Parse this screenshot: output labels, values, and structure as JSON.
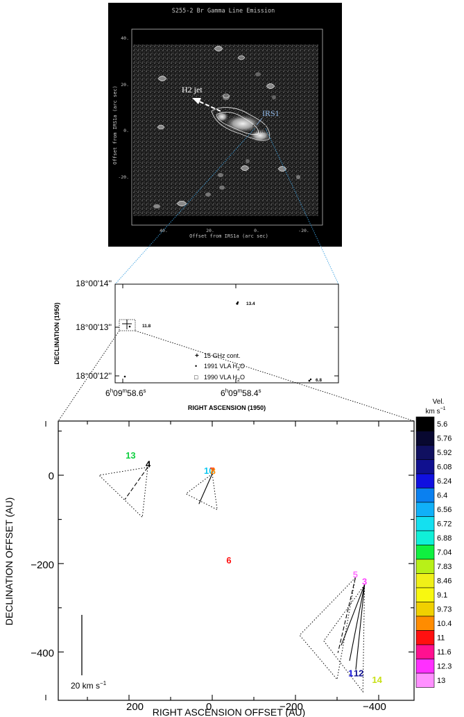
{
  "image_panel": {
    "title": "S255-2 Br Gamma Line Emission",
    "ylabel": "Offset from IRS1a (arc sec)",
    "xlabel": "Offset from IRS1a (arc sec)",
    "xticks": [
      "40.",
      "20.",
      "0.",
      "-20."
    ],
    "yticks": [
      "40.",
      "20.",
      "0.",
      "-20."
    ],
    "annotations": {
      "jet": "H2 jet",
      "source": "IRS1"
    }
  },
  "middle_panel": {
    "yticks": [
      "18°00'14''",
      "18°00'13''",
      "18°00'12''"
    ],
    "ylabel": "DECLINATION (1950)",
    "xlabel": "RIGHT ASCENSION (1950)",
    "xtick1": {
      "h": "6",
      "hs": "h",
      "m": "09",
      "ms": "m",
      "s": "58.6",
      "ss": "s"
    },
    "xtick2": {
      "h": "6",
      "hs": "h",
      "m": "09",
      "ms": "m",
      "s": "58.4",
      "ss": "s"
    },
    "point_labels": [
      "13.4",
      "11.8",
      "6.8"
    ],
    "legend": [
      {
        "symbol": "+",
        "text": "15    GHz cont."
      },
      {
        "symbol": "•",
        "text": "1991   VLA H",
        "sub": "2",
        "tail": "O"
      },
      {
        "symbol": "□",
        "text": "1990   VLA H",
        "sub": "2",
        "tail": "O"
      }
    ]
  },
  "chart_data": {
    "type": "scatter",
    "xlabel": "RIGHT ASCENSION OFFSET (AU)",
    "ylabel": "DECLINATION OFFSET (AU)",
    "xlim": [
      370,
      -490
    ],
    "ylim": [
      -500,
      135
    ],
    "xticks": [
      "200",
      "0",
      "−200",
      "−400"
    ],
    "yticks": [
      "0",
      "−200",
      "−400"
    ],
    "scale_bar": "20 km s",
    "scale_bar_sup": "−1",
    "colorbar": {
      "title": "Vel.",
      "units": "km s",
      "units_sup": "−1",
      "labels": [
        "5.6",
        "5.76",
        "5.92",
        "6.08",
        "6.24",
        "6.4",
        "6.56",
        "6.72",
        "6.88",
        "7.04",
        "7.83",
        "8.46",
        "9.1",
        "9.73",
        "10.4",
        "11",
        "11.6",
        "12.3",
        "13"
      ],
      "colors": [
        "#000000",
        "#080830",
        "#101060",
        "#10108f",
        "#1010e0",
        "#0a80f0",
        "#10b0f8",
        "#14e0f0",
        "#10f0d8",
        "#10f040",
        "#b8f018",
        "#f0f018",
        "#f8f810",
        "#f0d000",
        "#ff8c00",
        "#ff1010",
        "#ff1090",
        "#ff30ff",
        "#ff90ff"
      ]
    },
    "points": [
      {
        "label": "13",
        "x": 196,
        "y": 38,
        "color": "#10d040"
      },
      {
        "label": "4",
        "x": 154,
        "y": 18,
        "color": "#000000"
      },
      {
        "label": "10",
        "x": 8,
        "y": 3,
        "color": "#10c8f0"
      },
      {
        "label": "7",
        "x": 0,
        "y": 3,
        "color": "#ff1010"
      },
      {
        "label": "8",
        "x": -2,
        "y": 2,
        "color": "#ff8c00"
      },
      {
        "label": "6",
        "x": -40,
        "y": -200,
        "color": "#ff1010"
      },
      {
        "label": "5",
        "x": -344,
        "y": -232,
        "color": "#ff70ff"
      },
      {
        "label": "3",
        "x": -366,
        "y": -248,
        "color": "#ff40ff"
      },
      {
        "label": "1",
        "x": -333,
        "y": -455,
        "color": "#1010e0"
      },
      {
        "label": "12",
        "x": -352,
        "y": -455,
        "color": "#101090"
      },
      {
        "label": "14",
        "x": -396,
        "y": -470,
        "color": "#c8e018"
      }
    ],
    "cones": [
      {
        "apex": [
          155,
          18
        ],
        "base": [
          [
            272,
            0
          ],
          [
            168,
            -95
          ]
        ]
      },
      {
        "apex": [
          0,
          3
        ],
        "base": [
          [
            63,
            -42
          ],
          [
            -12,
            -78
          ]
        ]
      },
      {
        "apex": [
          -344,
          -232
        ],
        "base": [
          [
            -210,
            -362
          ],
          [
            -300,
            -462
          ]
        ]
      },
      {
        "apex": [
          -366,
          -248
        ],
        "base": [
          [
            -268,
            -375
          ],
          [
            -362,
            -490
          ]
        ]
      }
    ],
    "vectors": [
      {
        "from": [
          155,
          18
        ],
        "to": [
          210,
          -55
        ],
        "dash": true
      },
      {
        "from": [
          0,
          3
        ],
        "to": [
          32,
          -65
        ],
        "dash": false
      },
      {
        "from": [
          -344,
          -232
        ],
        "to": [
          -302,
          -402
        ],
        "dash": true
      },
      {
        "from": [
          -366,
          -248
        ],
        "to": [
          -310,
          -385
        ],
        "dash": false
      },
      {
        "from": [
          -366,
          -248
        ],
        "to": [
          -330,
          -420
        ],
        "dash": false
      },
      {
        "from": [
          -366,
          -248
        ],
        "to": [
          -345,
          -440
        ],
        "dash": false
      }
    ]
  }
}
